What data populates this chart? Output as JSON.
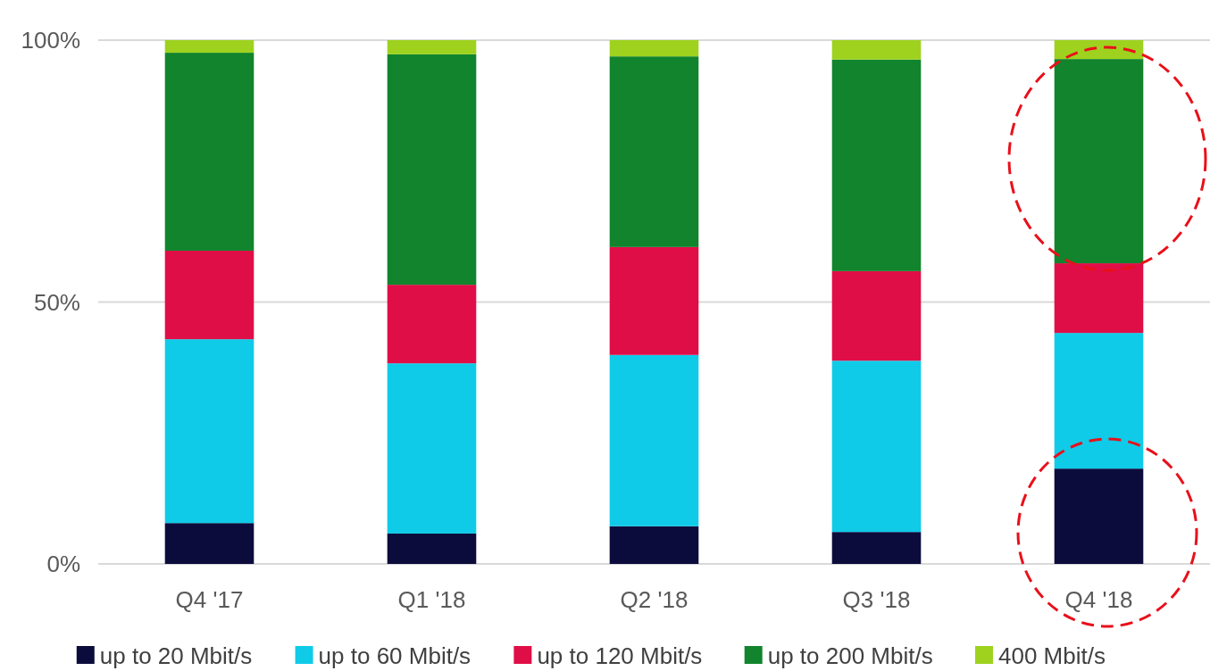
{
  "chart_data": {
    "type": "bar",
    "stacked": true,
    "categories": [
      "Q4 '17",
      "Q1 '18",
      "Q2 '18",
      "Q3 '18",
      "Q4 '18"
    ],
    "series": [
      {
        "name": "up to 20 Mbit/s",
        "color": "#0c0c3c",
        "values": [
          7.8,
          5.8,
          7.2,
          6.1,
          18.2
        ]
      },
      {
        "name": "up to 60 Mbit/s",
        "color": "#0fcbe8",
        "values": [
          35.1,
          32.5,
          32.7,
          32.7,
          25.9
        ]
      },
      {
        "name": "up to 120 Mbit/s",
        "color": "#e00e47",
        "values": [
          16.9,
          15.0,
          20.6,
          17.1,
          13.3
        ]
      },
      {
        "name": "up to 200 Mbit/s",
        "color": "#11842d",
        "values": [
          37.8,
          44.0,
          36.4,
          40.4,
          39.0
        ]
      },
      {
        "name": "400 Mbit/s",
        "color": "#9ed21e",
        "values": [
          2.4,
          2.7,
          3.1,
          3.7,
          3.6
        ]
      }
    ],
    "ylim": [
      0,
      100
    ],
    "yticks": [
      {
        "value": 0,
        "label": "0%"
      },
      {
        "value": 50,
        "label": "50%"
      },
      {
        "value": 100,
        "label": "100%"
      }
    ],
    "grid": "y",
    "legend": "bottom"
  }
}
